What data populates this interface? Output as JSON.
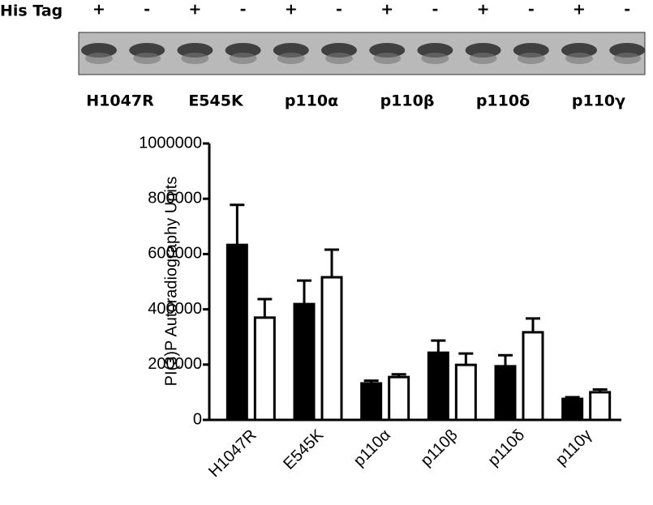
{
  "chart_data": {
    "type": "bar",
    "legend_title": "His Tag",
    "y_label": "PI(3)P Autoradiography Units",
    "categories": [
      "H1047R",
      "E545K",
      "p110α",
      "p110β",
      "p110δ",
      "p110γ"
    ],
    "series": [
      {
        "name": "+",
        "color": "#000000",
        "values": [
          633000,
          419000,
          132000,
          243000,
          194000,
          76000
        ],
        "errors": [
          145000,
          85000,
          10000,
          44000,
          40000,
          6000
        ]
      },
      {
        "name": "-",
        "color": "#ffffff",
        "values": [
          370000,
          516000,
          155000,
          199000,
          317000,
          100000
        ],
        "errors": [
          67000,
          100000,
          10000,
          41000,
          50000,
          10000
        ]
      }
    ],
    "ylim": [
      0,
      1000000
    ],
    "yticks": [
      0,
      200000,
      400000,
      600000,
      800000,
      1000000
    ],
    "grid": false
  }
}
